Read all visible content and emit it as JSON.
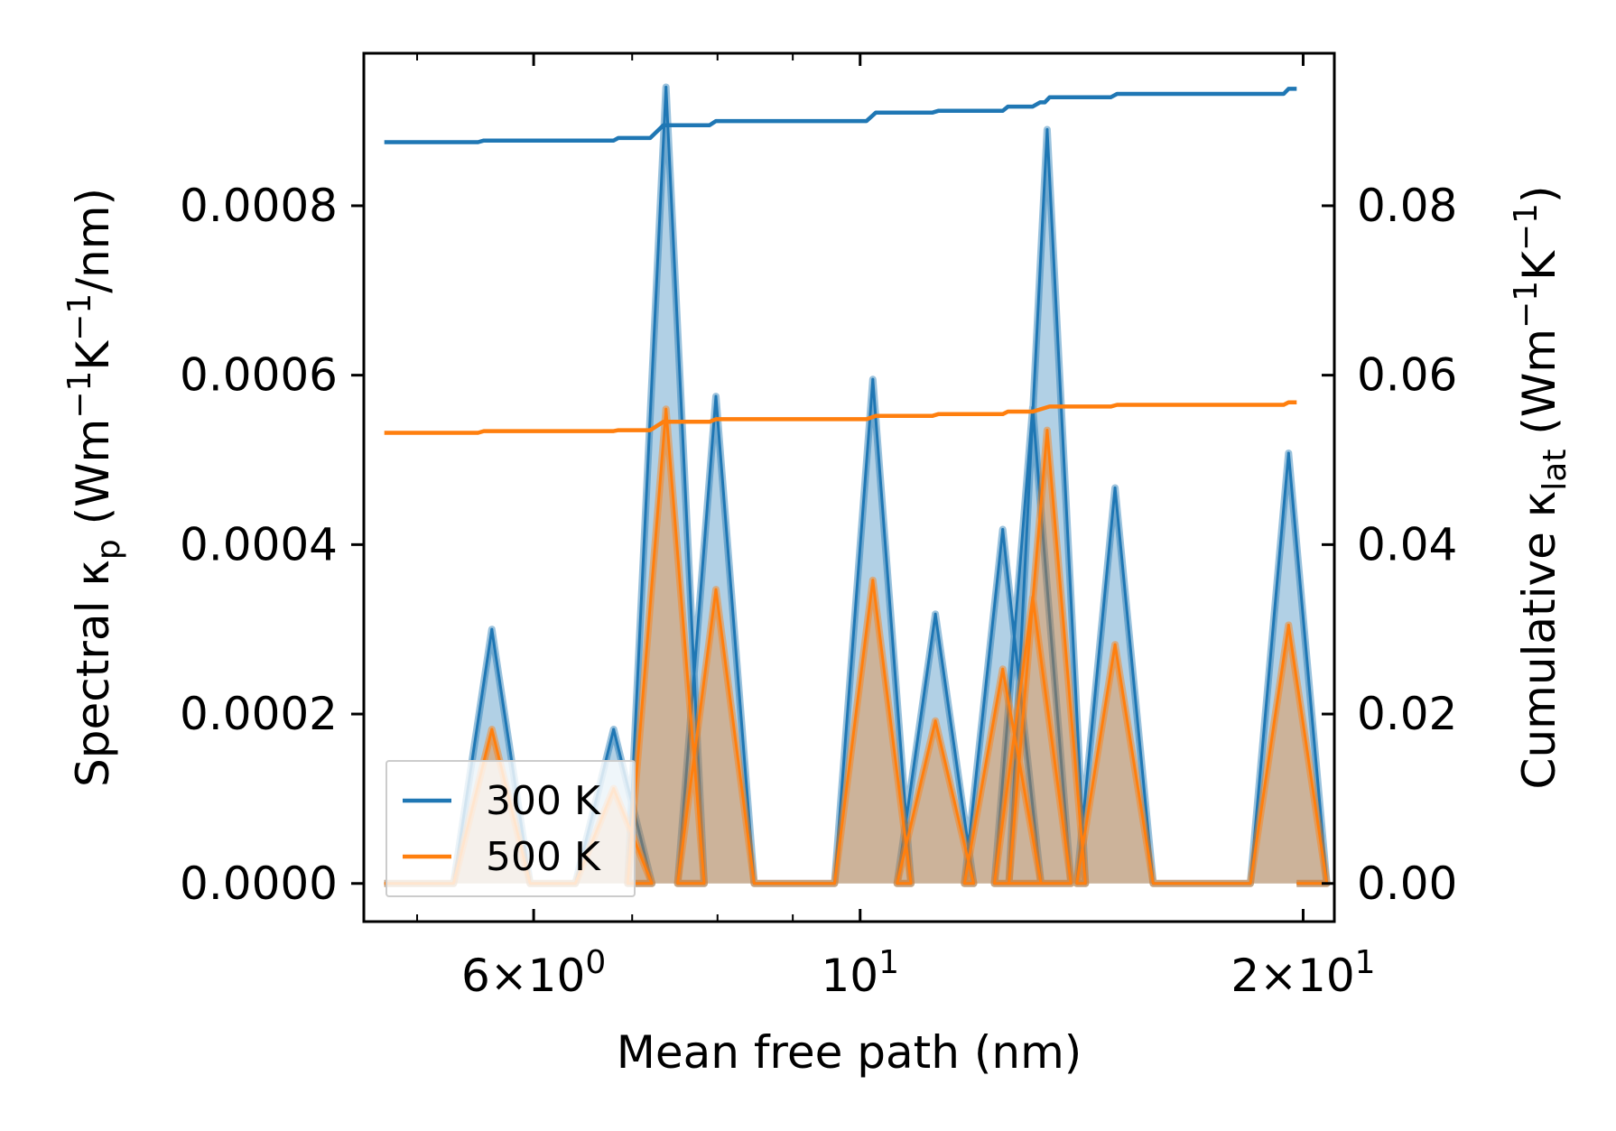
{
  "chart_data": {
    "type": "line",
    "title": "",
    "xlabel": "Mean free path (nm)",
    "ylabel_left": "Spectral κ_p (Wm^-1K^-1/nm)",
    "ylabel_left_parts": {
      "pre": "Spectral κ",
      "sub": "p",
      "mid": " (Wm",
      "sup1": "−1",
      "mid2": "K",
      "sup2": "−1",
      "post": "/nm)"
    },
    "ylabel_right": "Cumulative κ_lat (Wm^-1K^-1)",
    "ylabel_right_parts": {
      "pre": "Cumulative κ",
      "sub": "lat",
      "mid": " (Wm",
      "sup1": "−1",
      "mid2": "K",
      "sup2": "−1",
      "post": ")"
    },
    "xscale": "log",
    "xlim": [
      4.6,
      21.0
    ],
    "ylim_left": [
      -4.5e-05,
      0.00098
    ],
    "ylim_right": [
      -0.0045,
      0.098
    ],
    "x_ticks": [
      {
        "value": 6,
        "base": "6",
        "times": "×10",
        "exp": "0"
      },
      {
        "value": 10,
        "base": "",
        "times": "10",
        "exp": "1"
      },
      {
        "value": 20,
        "base": "2",
        "times": "×10",
        "exp": "1"
      }
    ],
    "x_minor_ticks": [
      5,
      7,
      8,
      9
    ],
    "y_left_ticks": [
      "0.0000",
      "0.0002",
      "0.0004",
      "0.0006",
      "0.0008"
    ],
    "y_left_tick_values": [
      0,
      0.0002,
      0.0004,
      0.0006,
      0.0008
    ],
    "y_right_ticks": [
      "0.00",
      "0.02",
      "0.04",
      "0.06",
      "0.08"
    ],
    "y_right_tick_values": [
      0,
      0.02,
      0.04,
      0.06,
      0.08
    ],
    "legend": {
      "position": "lower-left",
      "entries": [
        "300 K",
        "500 K"
      ]
    },
    "series": [
      {
        "name": "300 K",
        "color": "#1f77b4",
        "cumulative": [
          [
            4.75,
            0.0875
          ],
          [
            5.5,
            0.0875
          ],
          [
            5.55,
            0.0877
          ],
          [
            6.8,
            0.0877
          ],
          [
            6.85,
            0.088
          ],
          [
            7.2,
            0.088
          ],
          [
            7.35,
            0.0895
          ],
          [
            7.9,
            0.0895
          ],
          [
            7.98,
            0.09
          ],
          [
            10.1,
            0.09
          ],
          [
            10.25,
            0.091
          ],
          [
            11.2,
            0.091
          ],
          [
            11.3,
            0.0912
          ],
          [
            12.5,
            0.0912
          ],
          [
            12.6,
            0.0917
          ],
          [
            13.1,
            0.0917
          ],
          [
            13.25,
            0.0922
          ],
          [
            13.35,
            0.0922
          ],
          [
            13.45,
            0.0928
          ],
          [
            14.8,
            0.0928
          ],
          [
            14.95,
            0.0932
          ],
          [
            19.4,
            0.0932
          ],
          [
            19.55,
            0.0938
          ],
          [
            19.8,
            0.0938
          ]
        ],
        "peaks": [
          [
            5.62,
            0.0003
          ],
          [
            6.8,
            0.000182
          ],
          [
            7.38,
            0.00094
          ],
          [
            7.98,
            0.000575
          ],
          [
            10.2,
            0.000595
          ],
          [
            11.25,
            0.000318
          ],
          [
            12.5,
            0.000418
          ],
          [
            13.1,
            0.000562
          ],
          [
            13.4,
            0.00089
          ],
          [
            14.9,
            0.000467
          ],
          [
            19.55,
            0.000508
          ]
        ]
      },
      {
        "name": "500 K",
        "color": "#ff7f0e",
        "cumulative": [
          [
            4.75,
            0.0532
          ],
          [
            5.5,
            0.0532
          ],
          [
            5.55,
            0.0534
          ],
          [
            6.8,
            0.0534
          ],
          [
            6.85,
            0.0535
          ],
          [
            7.2,
            0.0535
          ],
          [
            7.35,
            0.0545
          ],
          [
            7.9,
            0.0545
          ],
          [
            7.98,
            0.0548
          ],
          [
            10.1,
            0.0548
          ],
          [
            10.25,
            0.0552
          ],
          [
            11.2,
            0.0552
          ],
          [
            11.3,
            0.0554
          ],
          [
            12.5,
            0.0554
          ],
          [
            12.6,
            0.0557
          ],
          [
            13.1,
            0.0557
          ],
          [
            13.45,
            0.0563
          ],
          [
            14.8,
            0.0563
          ],
          [
            14.95,
            0.0565
          ],
          [
            19.4,
            0.0565
          ],
          [
            19.55,
            0.0568
          ],
          [
            19.8,
            0.0568
          ]
        ],
        "peaks": [
          [
            5.62,
            0.000182
          ],
          [
            6.8,
            0.000112
          ],
          [
            7.38,
            0.00056
          ],
          [
            7.98,
            0.000347
          ],
          [
            10.2,
            0.000358
          ],
          [
            11.25,
            0.000192
          ],
          [
            12.5,
            0.000253
          ],
          [
            13.1,
            0.000338
          ],
          [
            13.4,
            0.000535
          ],
          [
            14.9,
            0.000282
          ],
          [
            19.55,
            0.000305
          ]
        ]
      }
    ]
  }
}
